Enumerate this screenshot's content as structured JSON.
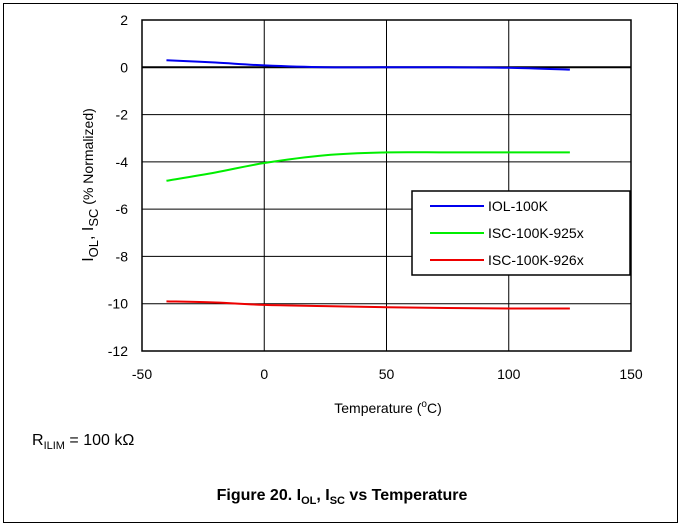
{
  "chart_data": {
    "type": "line",
    "xlabel": "Temperature (°C)",
    "ylabel": "Iₒₗ, Iₛᴄ (% Normalized)",
    "xlim": [
      -50,
      150
    ],
    "ylim": [
      -12,
      2
    ],
    "xticks": [
      -50,
      0,
      50,
      100,
      150
    ],
    "yticks": [
      2,
      0,
      -2,
      -4,
      -6,
      -8,
      -10,
      -12
    ],
    "grid": true,
    "legend_position": "right",
    "series": [
      {
        "name": "IOL-100K",
        "color": "#0000ee",
        "x": [
          -40,
          -20,
          0,
          25,
          50,
          75,
          100,
          125
        ],
        "y": [
          0.3,
          0.2,
          0.08,
          0.0,
          0.0,
          0.0,
          -0.02,
          -0.1
        ]
      },
      {
        "name": "ISC-100K-925x",
        "color": "#00ee00",
        "x": [
          -40,
          -20,
          0,
          25,
          50,
          75,
          100,
          125
        ],
        "y": [
          -4.8,
          -4.45,
          -4.05,
          -3.72,
          -3.6,
          -3.6,
          -3.6,
          -3.6
        ]
      },
      {
        "name": "ISC-100K-926x",
        "color": "#ee0000",
        "x": [
          -40,
          -20,
          0,
          25,
          50,
          75,
          100,
          125
        ],
        "y": [
          -9.9,
          -9.95,
          -10.05,
          -10.1,
          -10.15,
          -10.18,
          -10.2,
          -10.2
        ]
      }
    ]
  },
  "labels": {
    "ylabel_I": "I",
    "ylabel_OL": "OL",
    "ylabel_sep": ", I",
    "ylabel_SC": "SC",
    "ylabel_tail": " (% Normalized)",
    "xlabel_main": "Temperature (",
    "xlabel_o": "o",
    "xlabel_end": "C)"
  },
  "condition": {
    "R": "R",
    "sub": "ILIM",
    "value": " = 100 kΩ"
  },
  "caption": {
    "prefix": "Figure 20. I",
    "sub1": "OL",
    "mid": ", I",
    "sub2": "SC",
    "suffix": " vs Temperature"
  }
}
